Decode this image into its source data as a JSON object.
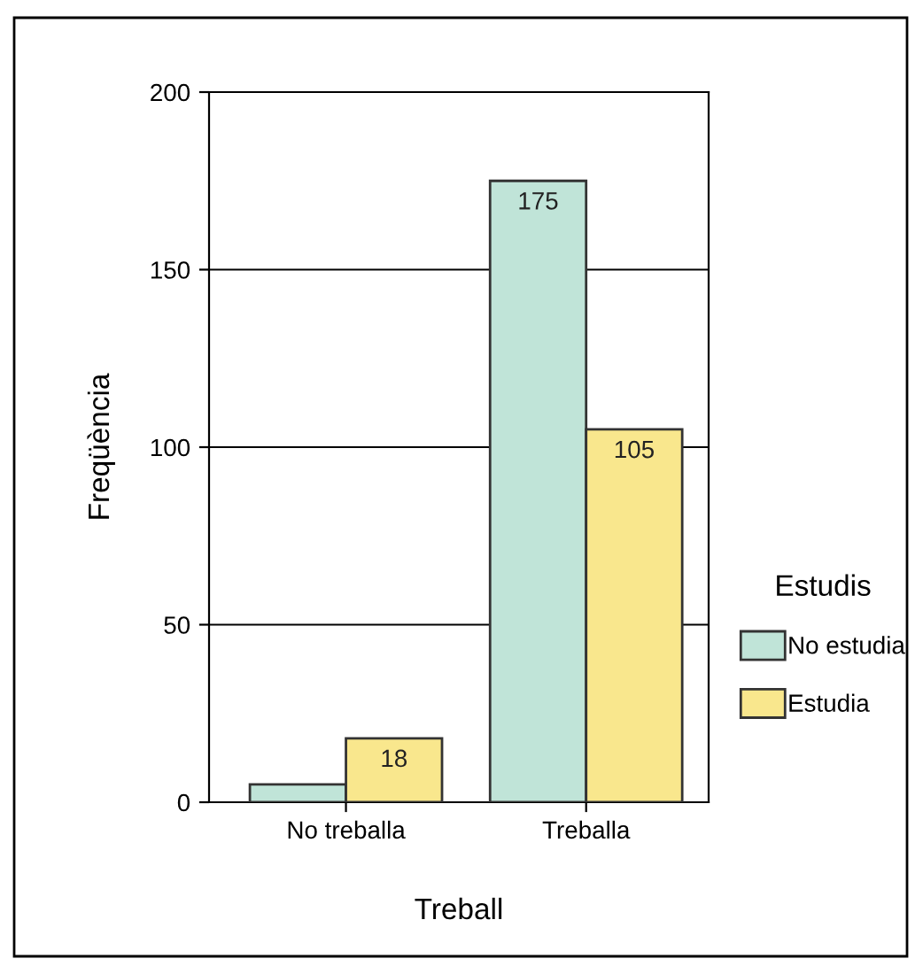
{
  "chart_data": {
    "type": "bar",
    "xlabel": "Treball",
    "ylabel": "Freqüència",
    "legend_title": "Estudis",
    "categories": [
      "No treballa",
      "Treballa"
    ],
    "series": [
      {
        "name": "No estudia",
        "color": "#c0e4d8",
        "values": [
          5,
          175
        ],
        "value_labels": [
          null,
          "175"
        ]
      },
      {
        "name": "Estudia",
        "color": "#f9e78d",
        "values": [
          18,
          105
        ],
        "value_labels": [
          "18",
          "105"
        ]
      }
    ],
    "ylim": [
      0,
      200
    ],
    "yticks": [
      0,
      50,
      100,
      150,
      200
    ],
    "grid": "y",
    "legend": "right"
  }
}
